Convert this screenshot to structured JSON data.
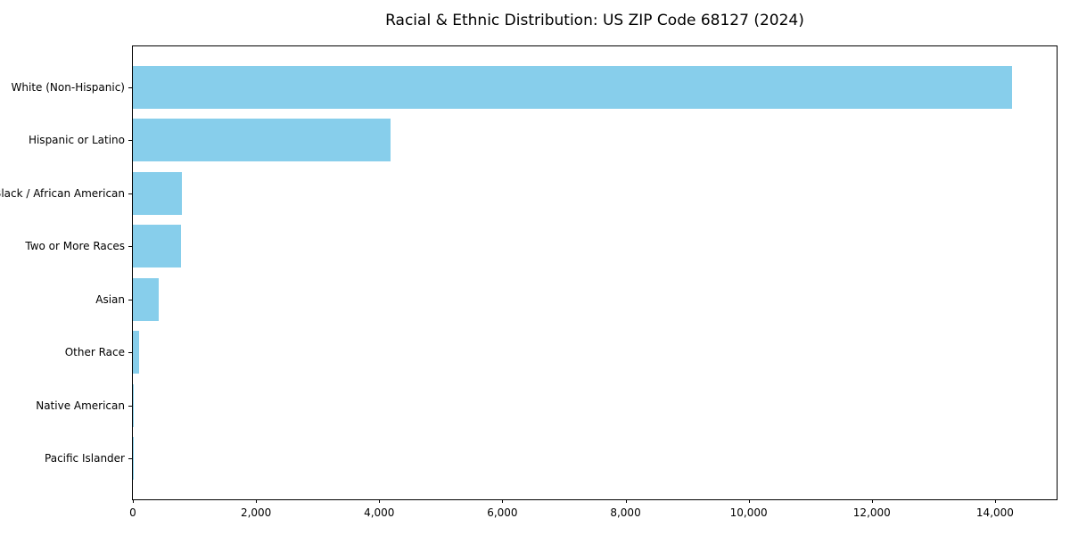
{
  "chart_data": {
    "type": "bar",
    "orientation": "horizontal",
    "title": "Racial & Ethnic Distribution: US ZIP Code 68127 (2024)",
    "categories": [
      "White (Non-Hispanic)",
      "Hispanic or Latino",
      "Black / African American",
      "Two or More Races",
      "Asian",
      "Other Race",
      "Native American",
      "Pacific Islander"
    ],
    "values": [
      14270,
      4180,
      800,
      785,
      415,
      105,
      20,
      5
    ],
    "xlabel": "",
    "ylabel": "",
    "xlim": [
      0,
      15000
    ],
    "xticks": [
      0,
      2000,
      4000,
      6000,
      8000,
      10000,
      12000,
      14000
    ],
    "xtick_labels": [
      "0",
      "2,000",
      "4,000",
      "6,000",
      "8,000",
      "10,000",
      "12,000",
      "14,000"
    ],
    "grid": false,
    "legend": null,
    "bar_color": "#87CEEB",
    "colors": {
      "background": "#ffffff",
      "text": "#000000",
      "spine": "#000000"
    }
  }
}
